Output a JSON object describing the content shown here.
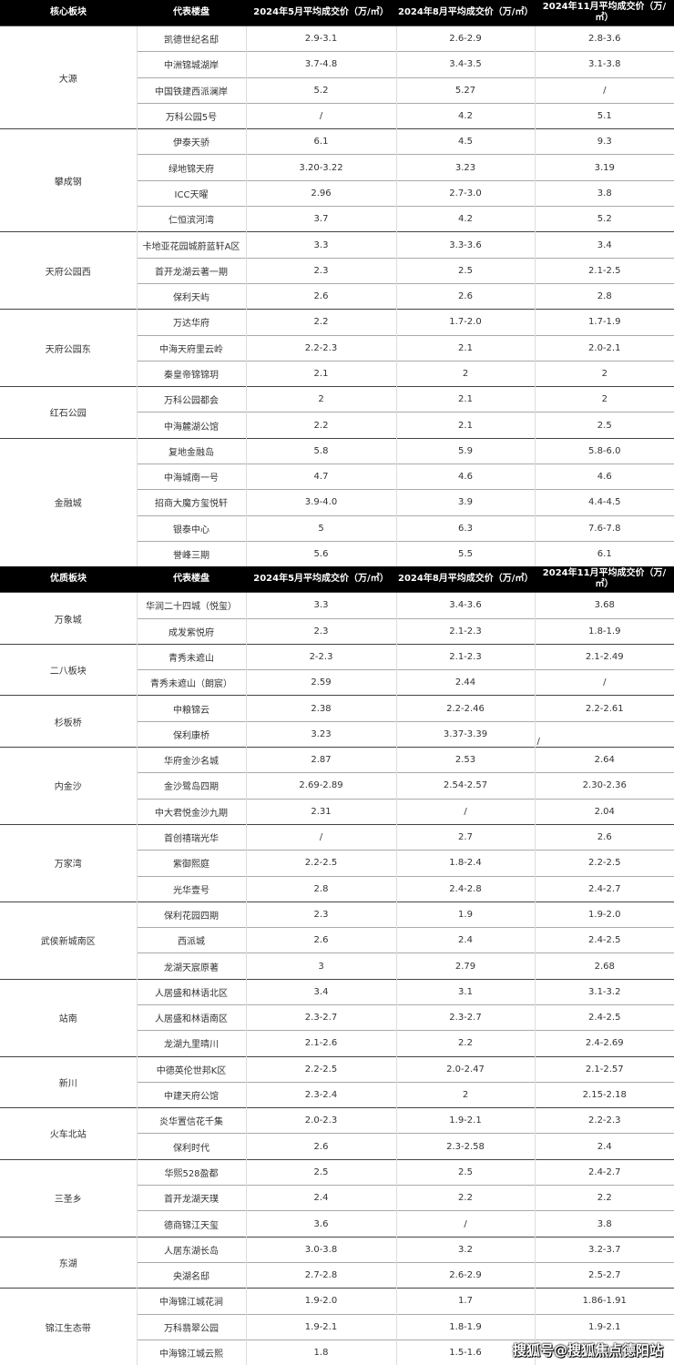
{
  "tables": [
    {
      "headers": [
        "核心板块",
        "代表楼盘",
        "2024年5月平均成交价（万/㎡）",
        "2024年8月平均成交价（万/㎡）",
        "2024年11月平均成交价（万/㎡）"
      ],
      "groups": [
        {
          "name": "大源",
          "rows": [
            [
              "凯德世纪名邸",
              "2.9-3.1",
              "2.6-2.9",
              "2.8-3.6"
            ],
            [
              "中洲锦城湖岸",
              "3.7-4.8",
              "3.4-3.5",
              "3.1-3.8"
            ],
            [
              "中国铁建西派澜岸",
              "5.2",
              "5.27",
              "/"
            ],
            [
              "万科公园5号",
              "/",
              "4.2",
              "5.1"
            ]
          ]
        },
        {
          "name": "攀成钢",
          "rows": [
            [
              "伊泰天骄",
              "6.1",
              "4.5",
              "9.3"
            ],
            [
              "绿地锦天府",
              "3.20-3.22",
              "3.23",
              "3.19"
            ],
            [
              "ICC天曜",
              "2.96",
              "2.7-3.0",
              "3.8"
            ],
            [
              "仁恒滨河湾",
              "3.7",
              "4.2",
              "5.2"
            ]
          ]
        },
        {
          "name": "天府公园西",
          "rows": [
            [
              "卡地亚花园城蔚蓝轩A区",
              "3.3",
              "3.3-3.6",
              "3.4"
            ],
            [
              "首开龙湖云著一期",
              "2.3",
              "2.5",
              "2.1-2.5"
            ],
            [
              "保利天屿",
              "2.6",
              "2.6",
              "2.8"
            ]
          ]
        },
        {
          "name": "天府公园东",
          "rows": [
            [
              "万达华府",
              "2.2",
              "1.7-2.0",
              "1.7-1.9"
            ],
            [
              "中海天府里云岭",
              "2.2-2.3",
              "2.1",
              "2.0-2.1"
            ],
            [
              "秦皇帝锦锦玥",
              "2.1",
              "2",
              "2"
            ]
          ]
        },
        {
          "name": "红石公园",
          "rows": [
            [
              "万科公园都会",
              "2",
              "2.1",
              "2"
            ],
            [
              "中海麓湖公馆",
              "2.2",
              "2.1",
              "2.5"
            ]
          ]
        },
        {
          "name": "金融城",
          "rows": [
            [
              "复地金融岛",
              "5.8",
              "5.9",
              "5.8-6.0"
            ],
            [
              "中海城南一号",
              "4.7",
              "4.6",
              "4.6"
            ],
            [
              "招商大魔方玺悦轩",
              "3.9-4.0",
              "3.9",
              "4.4-4.5"
            ],
            [
              "银泰中心",
              "5",
              "6.3",
              "7.6-7.8"
            ],
            [
              "誉峰三期",
              "5.6",
              "5.5",
              "6.1"
            ]
          ]
        }
      ]
    },
    {
      "headers": [
        "优质板块",
        "代表楼盘",
        "2024年5月平均成交价（万/㎡）",
        "2024年8月平均成交价（万/㎡）",
        "2024年11月平均成交价（万/㎡）"
      ],
      "groups": [
        {
          "name": "万象城",
          "rows": [
            [
              "华润二十四城（悦玺）",
              "3.3",
              "3.4-3.6",
              "3.68"
            ],
            [
              "成发紫悦府",
              "2.3",
              "2.1-2.3",
              "1.8-1.9"
            ]
          ]
        },
        {
          "name": "二八板块",
          "rows": [
            [
              "青秀未遮山",
              "2-2.3",
              "2.1-2.3",
              "2.1-2.49"
            ],
            [
              "青秀未遮山（朗宸）",
              "2.59",
              "2.44",
              "/"
            ]
          ]
        },
        {
          "name": "杉板桥",
          "rows": [
            [
              "中粮锦云",
              "2.38",
              "2.2-2.46",
              "2.2-2.61"
            ],
            [
              "保利康桥",
              "3.23",
              "3.37-3.39",
              "/"
            ]
          ]
        },
        {
          "name": "内金沙",
          "rows": [
            [
              "华府金沙名城",
              "2.87",
              "2.53",
              "2.64"
            ],
            [
              "金沙鹭岛四期",
              "2.69-2.89",
              "2.54-2.57",
              "2.30-2.36"
            ],
            [
              "中大君悦金沙九期",
              "2.31",
              "/",
              "2.04"
            ]
          ]
        },
        {
          "name": "万家湾",
          "rows": [
            [
              "首创禧瑞光华",
              "/",
              "2.7",
              "2.6"
            ],
            [
              "紫御熙庭",
              "2.2-2.5",
              "1.8-2.4",
              "2.2-2.5"
            ],
            [
              "光华壹号",
              "2.8",
              "2.4-2.8",
              "2.4-2.7"
            ]
          ]
        },
        {
          "name": "武侯新城南区",
          "rows": [
            [
              "保利花园四期",
              "2.3",
              "1.9",
              "1.9-2.0"
            ],
            [
              "西派城",
              "2.6",
              "2.4",
              "2.4-2.5"
            ],
            [
              "龙湖天宸原著",
              "3",
              "2.79",
              "2.68"
            ]
          ]
        },
        {
          "name": "站南",
          "rows": [
            [
              "人居盛和林语北区",
              "3.4",
              "3.1",
              "3.1-3.2"
            ],
            [
              "人居盛和林语南区",
              "2.3-2.7",
              "2.3-2.7",
              "2.4-2.5"
            ],
            [
              "龙湖九里晴川",
              "2.1-2.6",
              "2.2",
              "2.4-2.69"
            ]
          ]
        },
        {
          "name": "新川",
          "rows": [
            [
              "中德英伦世邦K区",
              "2.2-2.5",
              "2.0-2.47",
              "2.1-2.57"
            ],
            [
              "中建天府公馆",
              "2.3-2.4",
              "2",
              "2.15-2.18"
            ]
          ]
        },
        {
          "name": "火车北站",
          "rows": [
            [
              "炎华置信花千集",
              "2.0-2.3",
              "1.9-2.1",
              "2.2-2.3"
            ],
            [
              "保利时代",
              "2.6",
              "2.3-2.58",
              "2.4"
            ]
          ]
        },
        {
          "name": "三圣乡",
          "rows": [
            [
              "华熙528盈都",
              "2.5",
              "2.5",
              "2.4-2.7"
            ],
            [
              "首开龙湖天璞",
              "2.4",
              "2.2",
              "2.2"
            ],
            [
              "德商锦江天玺",
              "3.6",
              "/",
              "3.8"
            ]
          ]
        },
        {
          "name": "东湖",
          "rows": [
            [
              "人居东湖长岛",
              "3.0-3.8",
              "3.2",
              "3.2-3.7"
            ],
            [
              "央湖名邸",
              "2.7-2.8",
              "2.6-2.9",
              "2.5-2.7"
            ]
          ]
        },
        {
          "name": "锦江生态带",
          "rows": [
            [
              "中海锦江城花涧",
              "1.9-2.0",
              "1.7",
              "1.86-1.91"
            ],
            [
              "万科翡翠公园",
              "1.9-2.1",
              "1.8-1.9",
              "1.9-2.1"
            ],
            [
              "中海锦江城云熙",
              "1.8",
              "1.5-1.6",
              "搜狐号@搜狐焦点德阳站"
            ]
          ]
        }
      ]
    }
  ],
  "watermark": "搜狐号@搜狐焦点德阳站"
}
